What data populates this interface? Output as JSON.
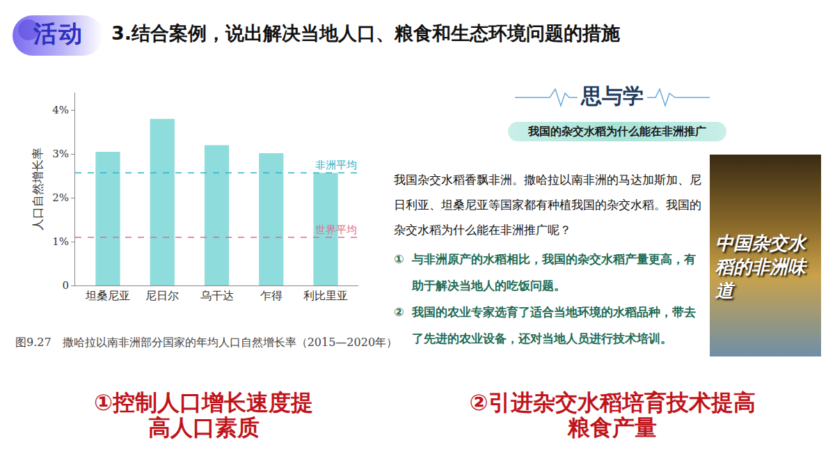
{
  "header": {
    "badge": "活动",
    "title": "3.结合案例，说出解决当地人口、粮食和生态环境问题的措施"
  },
  "chart_data": {
    "type": "bar",
    "categories": [
      "坦桑尼亚",
      "尼日尔",
      "乌干达",
      "乍得",
      "利比里亚"
    ],
    "values": [
      3.05,
      3.8,
      3.2,
      3.02,
      2.57
    ],
    "color": "#8fdcdc",
    "y_label": "人口自然增长率",
    "caption": "图9.27　撒哈拉以南非洲部分国家的年均人口自然增长率（2015—2020年）",
    "ylim": [
      0,
      4.4
    ],
    "yticks": [
      0,
      {
        "value": 1,
        "label": "1%"
      },
      {
        "value": 2,
        "label": "2%"
      },
      {
        "value": 3,
        "label": "3%"
      },
      {
        "value": 4,
        "label": "4%"
      }
    ],
    "grid": false,
    "reference_lines": [
      {
        "label": "非洲平均",
        "value": 2.57,
        "color": "#2bb3c9"
      },
      {
        "label": "世界平均",
        "value": 1.1,
        "color": "#e46a8a"
      }
    ]
  },
  "case": {
    "heading": "思与学",
    "question": "我国的杂交水稻为什么能在非洲推广",
    "paragraph": "我国杂交水稻香飘非洲。撒哈拉以南非洲的马达加斯加、尼日利亚、坦桑尼亚等国家都有种植我国的杂交水稻。我国的杂交水稻为什么能在非洲推广呢？",
    "points": [
      {
        "number": "①",
        "text": "与非洲原产的水稻相比，我国的杂交水稻产量更高，有助于解决当地人的吃饭问题。"
      },
      {
        "number": "②",
        "text": "我国的农业专家选育了适合当地环境的水稻品种，带去了先进的农业设备，还对当地人员进行技术培训。"
      }
    ],
    "poster_title": "中国杂交水稻的非洲味道"
  },
  "answers": [
    "①控制人口增长速度提高人口素质",
    "②引进杂交水稻培育技术提高粮食产量"
  ]
}
